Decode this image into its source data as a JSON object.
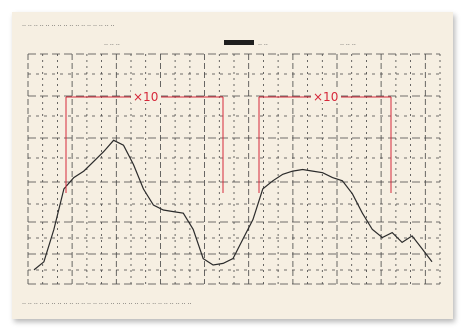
{
  "chart_data": {
    "type": "line",
    "title": "",
    "xlabel": "",
    "ylabel": "",
    "grid": true,
    "x": [
      0,
      1,
      2,
      3,
      4,
      5,
      6,
      7,
      8,
      9,
      10,
      11,
      12,
      13,
      14,
      15,
      16,
      17,
      18,
      19,
      20,
      21,
      22,
      23,
      24,
      25,
      26,
      27,
      28,
      29,
      30,
      31,
      32,
      33,
      34,
      35,
      36,
      37,
      38,
      39,
      40
    ],
    "series": [
      {
        "values": [
          0.05,
          0.1,
          0.3,
          0.55,
          0.62,
          0.66,
          0.72,
          0.78,
          0.85,
          0.82,
          0.7,
          0.55,
          0.45,
          0.42,
          0.41,
          0.4,
          0.3,
          0.12,
          0.08,
          0.09,
          0.12,
          0.24,
          0.36,
          0.55,
          0.6,
          0.64,
          0.66,
          0.67,
          0.66,
          0.65,
          0.62,
          0.6,
          0.52,
          0.4,
          0.3,
          0.25,
          0.28,
          0.22,
          0.26,
          0.18,
          0.1
        ]
      }
    ],
    "annotations": [
      {
        "label": "×10",
        "color": "#d6283a"
      },
      {
        "label": "×10",
        "color": "#d6283a"
      }
    ]
  },
  "colors": {
    "panel_bg": "#f6efe2",
    "trace": "#2b2b2b",
    "annotation": "#d6283a",
    "grid": "#444444"
  }
}
